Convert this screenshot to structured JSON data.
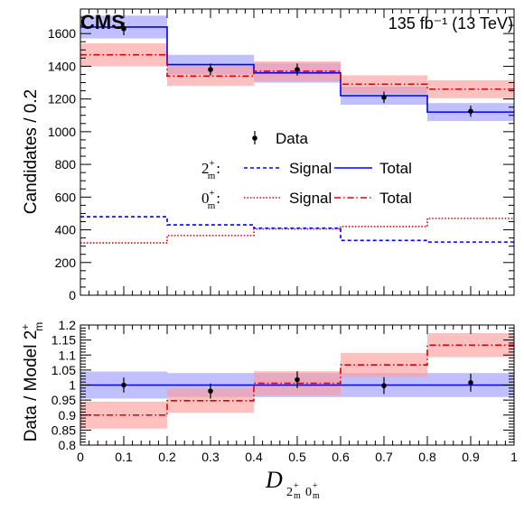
{
  "chart_data": [
    {
      "type": "step",
      "title": "CMS",
      "subtitle": "135 fb⁻¹ (13 TeV)",
      "ylabel": "Candidates / 0.2",
      "xlim": [
        0,
        1
      ],
      "ylim": [
        0,
        1750
      ],
      "y_ticks": [
        0,
        200,
        400,
        600,
        800,
        1000,
        1200,
        1400,
        1600
      ],
      "bin_edges": [
        0,
        0.2,
        0.4,
        0.6,
        0.8,
        1.0
      ],
      "data": {
        "name": "Data",
        "x": [
          0.1,
          0.3,
          0.5,
          0.7,
          0.9
        ],
        "y": [
          1630,
          1380,
          1380,
          1210,
          1125
        ],
        "yerr": [
          40,
          37,
          37,
          35,
          34
        ]
      },
      "series": [
        {
          "name": "Total",
          "group": "2m+",
          "style": "solid",
          "color": "#0000ff",
          "values": [
            1640,
            1410,
            1360,
            1220,
            1120
          ],
          "band": [
            70,
            60,
            60,
            55,
            55
          ]
        },
        {
          "name": "Signal",
          "group": "2m+",
          "style": "dashed",
          "color": "#0000ff",
          "values": [
            480,
            430,
            410,
            335,
            325
          ]
        },
        {
          "name": "Total",
          "group": "0m+",
          "style": "dashdot",
          "color": "#dd0000",
          "values": [
            1470,
            1340,
            1370,
            1290,
            1260
          ],
          "band": [
            70,
            60,
            60,
            55,
            55
          ]
        },
        {
          "name": "Signal",
          "group": "0m+",
          "style": "dotted",
          "color": "#dd0000",
          "values": [
            320,
            365,
            405,
            420,
            470
          ]
        }
      ],
      "legend": {
        "data_label": "Data",
        "row_2m": "2",
        "row_0m": "0",
        "signal_label": "Signal",
        "total_label": "Total",
        "placement": "center"
      }
    },
    {
      "type": "ratio",
      "ylabel": "Data / Model 2",
      "xlabel": "D",
      "xlim": [
        0,
        1
      ],
      "ylim": [
        0.8,
        1.2
      ],
      "x_ticks": [
        0,
        0.1,
        0.2,
        0.3,
        0.4,
        0.5,
        0.6,
        0.7,
        0.8,
        0.9,
        1
      ],
      "y_ticks": [
        0.8,
        0.85,
        0.9,
        0.95,
        1,
        1.05,
        1.1,
        1.15,
        1.2
      ],
      "bin_edges": [
        0,
        0.2,
        0.4,
        0.6,
        0.8,
        1.0
      ],
      "data": {
        "x": [
          0.1,
          0.3,
          0.5,
          0.7,
          0.9
        ],
        "y": [
          1.0,
          0.98,
          1.018,
          0.998,
          1.008
        ],
        "yerr": [
          0.025,
          0.025,
          0.028,
          0.028,
          0.03
        ]
      },
      "series": [
        {
          "name": "2m+ model",
          "color": "#0000ff",
          "values": [
            1.0,
            1.0,
            1.0,
            1.0,
            1.0
          ],
          "band": [
            0.045,
            0.04,
            0.04,
            0.04,
            0.04
          ]
        },
        {
          "name": "0m+ model",
          "color": "#dd0000",
          "values": [
            0.9,
            0.948,
            1.006,
            1.067,
            1.133
          ],
          "band": [
            0.045,
            0.04,
            0.04,
            0.04,
            0.04
          ]
        }
      ]
    }
  ],
  "colors": {
    "blue": "#0000ff",
    "red": "#dd0000",
    "blue_band": "#9999ff",
    "red_band": "#ff9999"
  }
}
